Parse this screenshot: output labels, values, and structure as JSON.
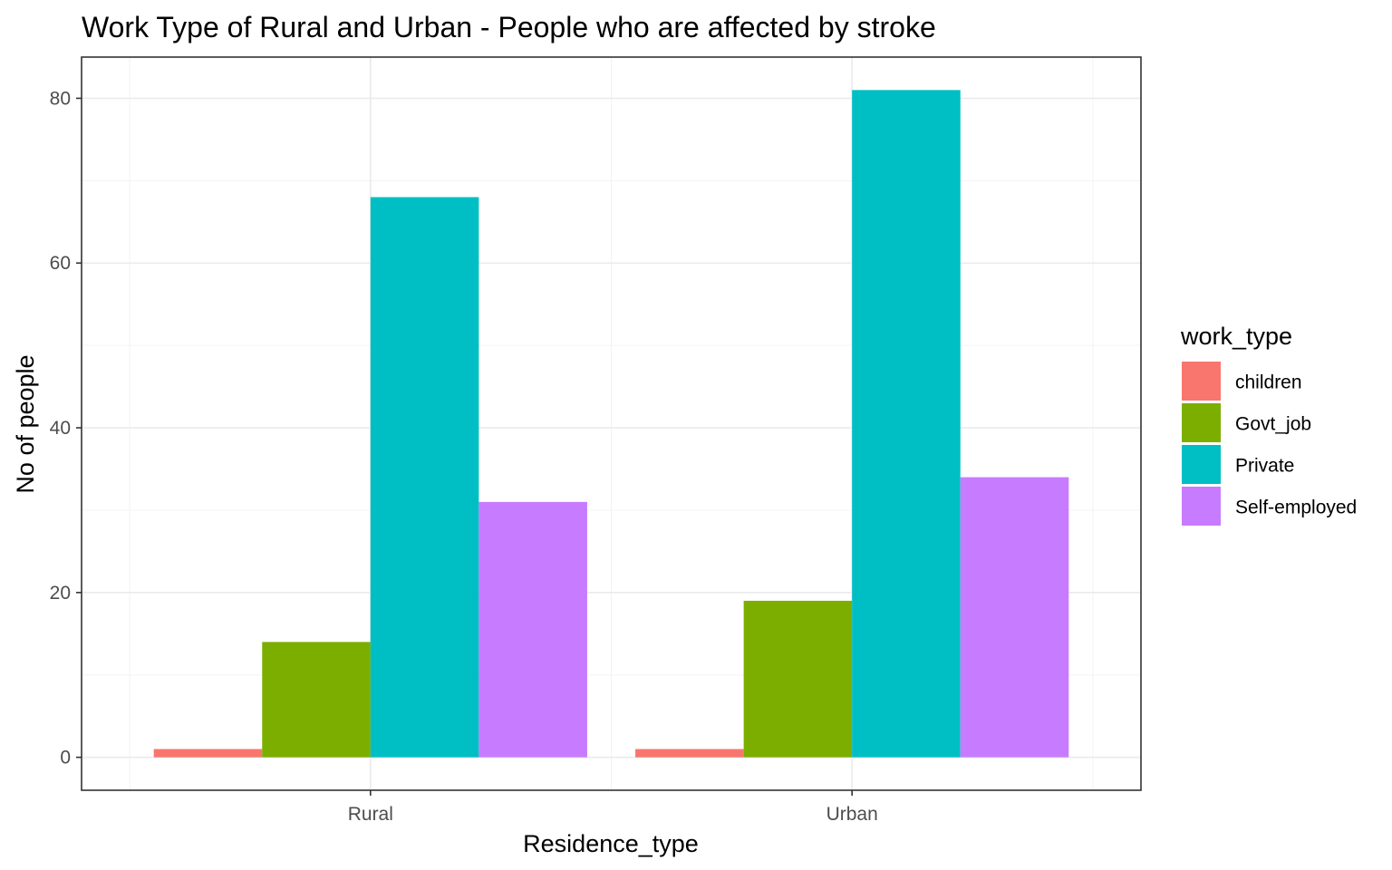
{
  "chart_data": {
    "type": "bar",
    "title": "Work Type of Rural and Urban - People who are affected by stroke",
    "xlabel": "Residence_type",
    "ylabel": "No of people",
    "categories": [
      "Rural",
      "Urban"
    ],
    "series": [
      {
        "name": "children",
        "color": "#F8766D",
        "values": [
          1,
          1
        ]
      },
      {
        "name": "Govt_job",
        "color": "#7CAE00",
        "values": [
          14,
          19
        ]
      },
      {
        "name": "Private",
        "color": "#00BFC4",
        "values": [
          68,
          81
        ]
      },
      {
        "name": "Self-employed",
        "color": "#C77CFF",
        "values": [
          31,
          34
        ]
      }
    ],
    "ylim": [
      -4,
      85
    ],
    "yticks": [
      0,
      20,
      40,
      60,
      80
    ],
    "grid": true,
    "legend": {
      "title": "work_type",
      "position": "right"
    }
  }
}
